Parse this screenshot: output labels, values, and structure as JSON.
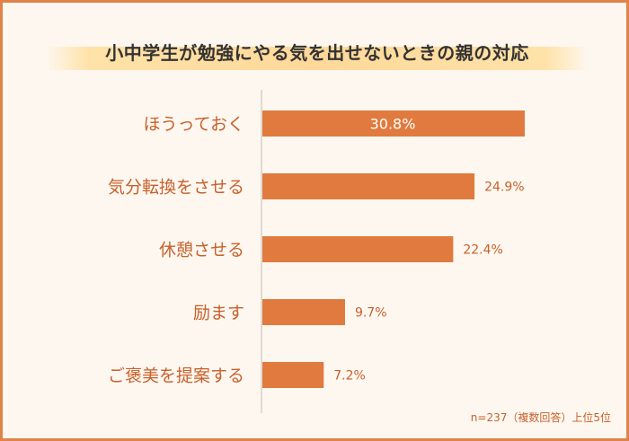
{
  "chart_data": {
    "type": "bar",
    "orientation": "horizontal",
    "title": "小中学生が勉強にやる気を出せないときの親の対応",
    "categories": [
      "ほうっておく",
      "気分転換をさせる",
      "休憩させる",
      "励ます",
      "ご褒美を提案する"
    ],
    "values": [
      30.8,
      24.9,
      22.4,
      9.7,
      7.2
    ],
    "value_labels": [
      "30.8%",
      "24.9%",
      "22.4%",
      "9.7%",
      "7.2%"
    ],
    "xlim": [
      0,
      33
    ],
    "grid": false,
    "note": "n=237（複数回答）上位5位",
    "colors": {
      "bar": "#e07a3e",
      "label": "#c8602a",
      "frame": "#e0824a"
    }
  }
}
